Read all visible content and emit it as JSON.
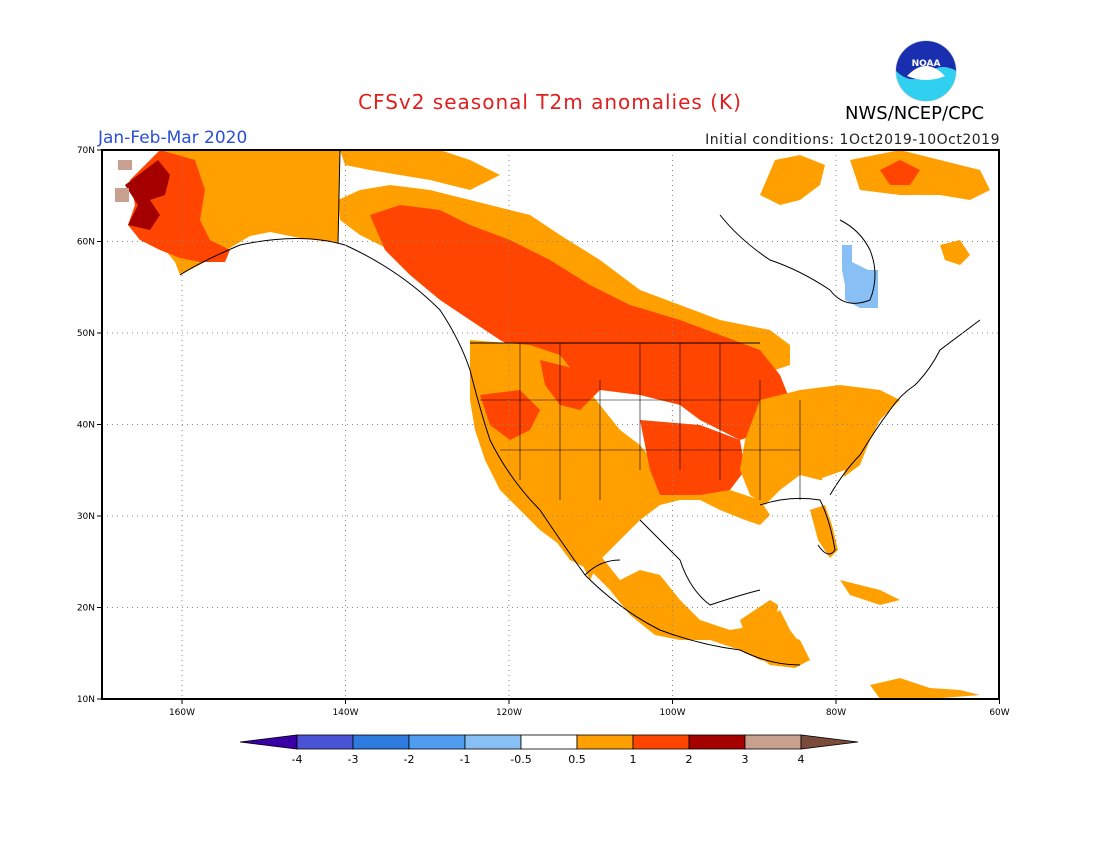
{
  "title": "CFSv2 seasonal T2m anomalies (K)",
  "subtitle": "Jan-Feb-Mar 2020",
  "initial_conditions": "Initial conditions: 1Oct2019-10Oct2019",
  "agency": "NWS/NCEP/CPC",
  "logo_text": "NOAA",
  "lat_labels": [
    "10N",
    "20N",
    "30N",
    "40N",
    "50N",
    "60N",
    "70N"
  ],
  "lon_labels": [
    "160W",
    "140W",
    "120W",
    "100W",
    "80W",
    "60W"
  ],
  "colorbar": {
    "labels": [
      "-4",
      "-3",
      "-2",
      "-1",
      "-0.5",
      "0.5",
      "1",
      "2",
      "3",
      "4"
    ],
    "colors": [
      "#3a00a8",
      "#4a52d6",
      "#2e7be0",
      "#4e9df0",
      "#88c0f5",
      "#ffffff",
      "#ffa000",
      "#ff4500",
      "#a50000",
      "#c8a090",
      "#7a4a3a"
    ]
  },
  "colors": {
    "lt_0p5_1": "#ffa000",
    "lt_1_2": "#ff4500",
    "lt_2_3": "#a50000",
    "lt_3_4": "#c8a090",
    "neg_0p5_1": "#88c0f5",
    "title": "#e21e1e",
    "subtitle": "#2a4fd6"
  }
}
